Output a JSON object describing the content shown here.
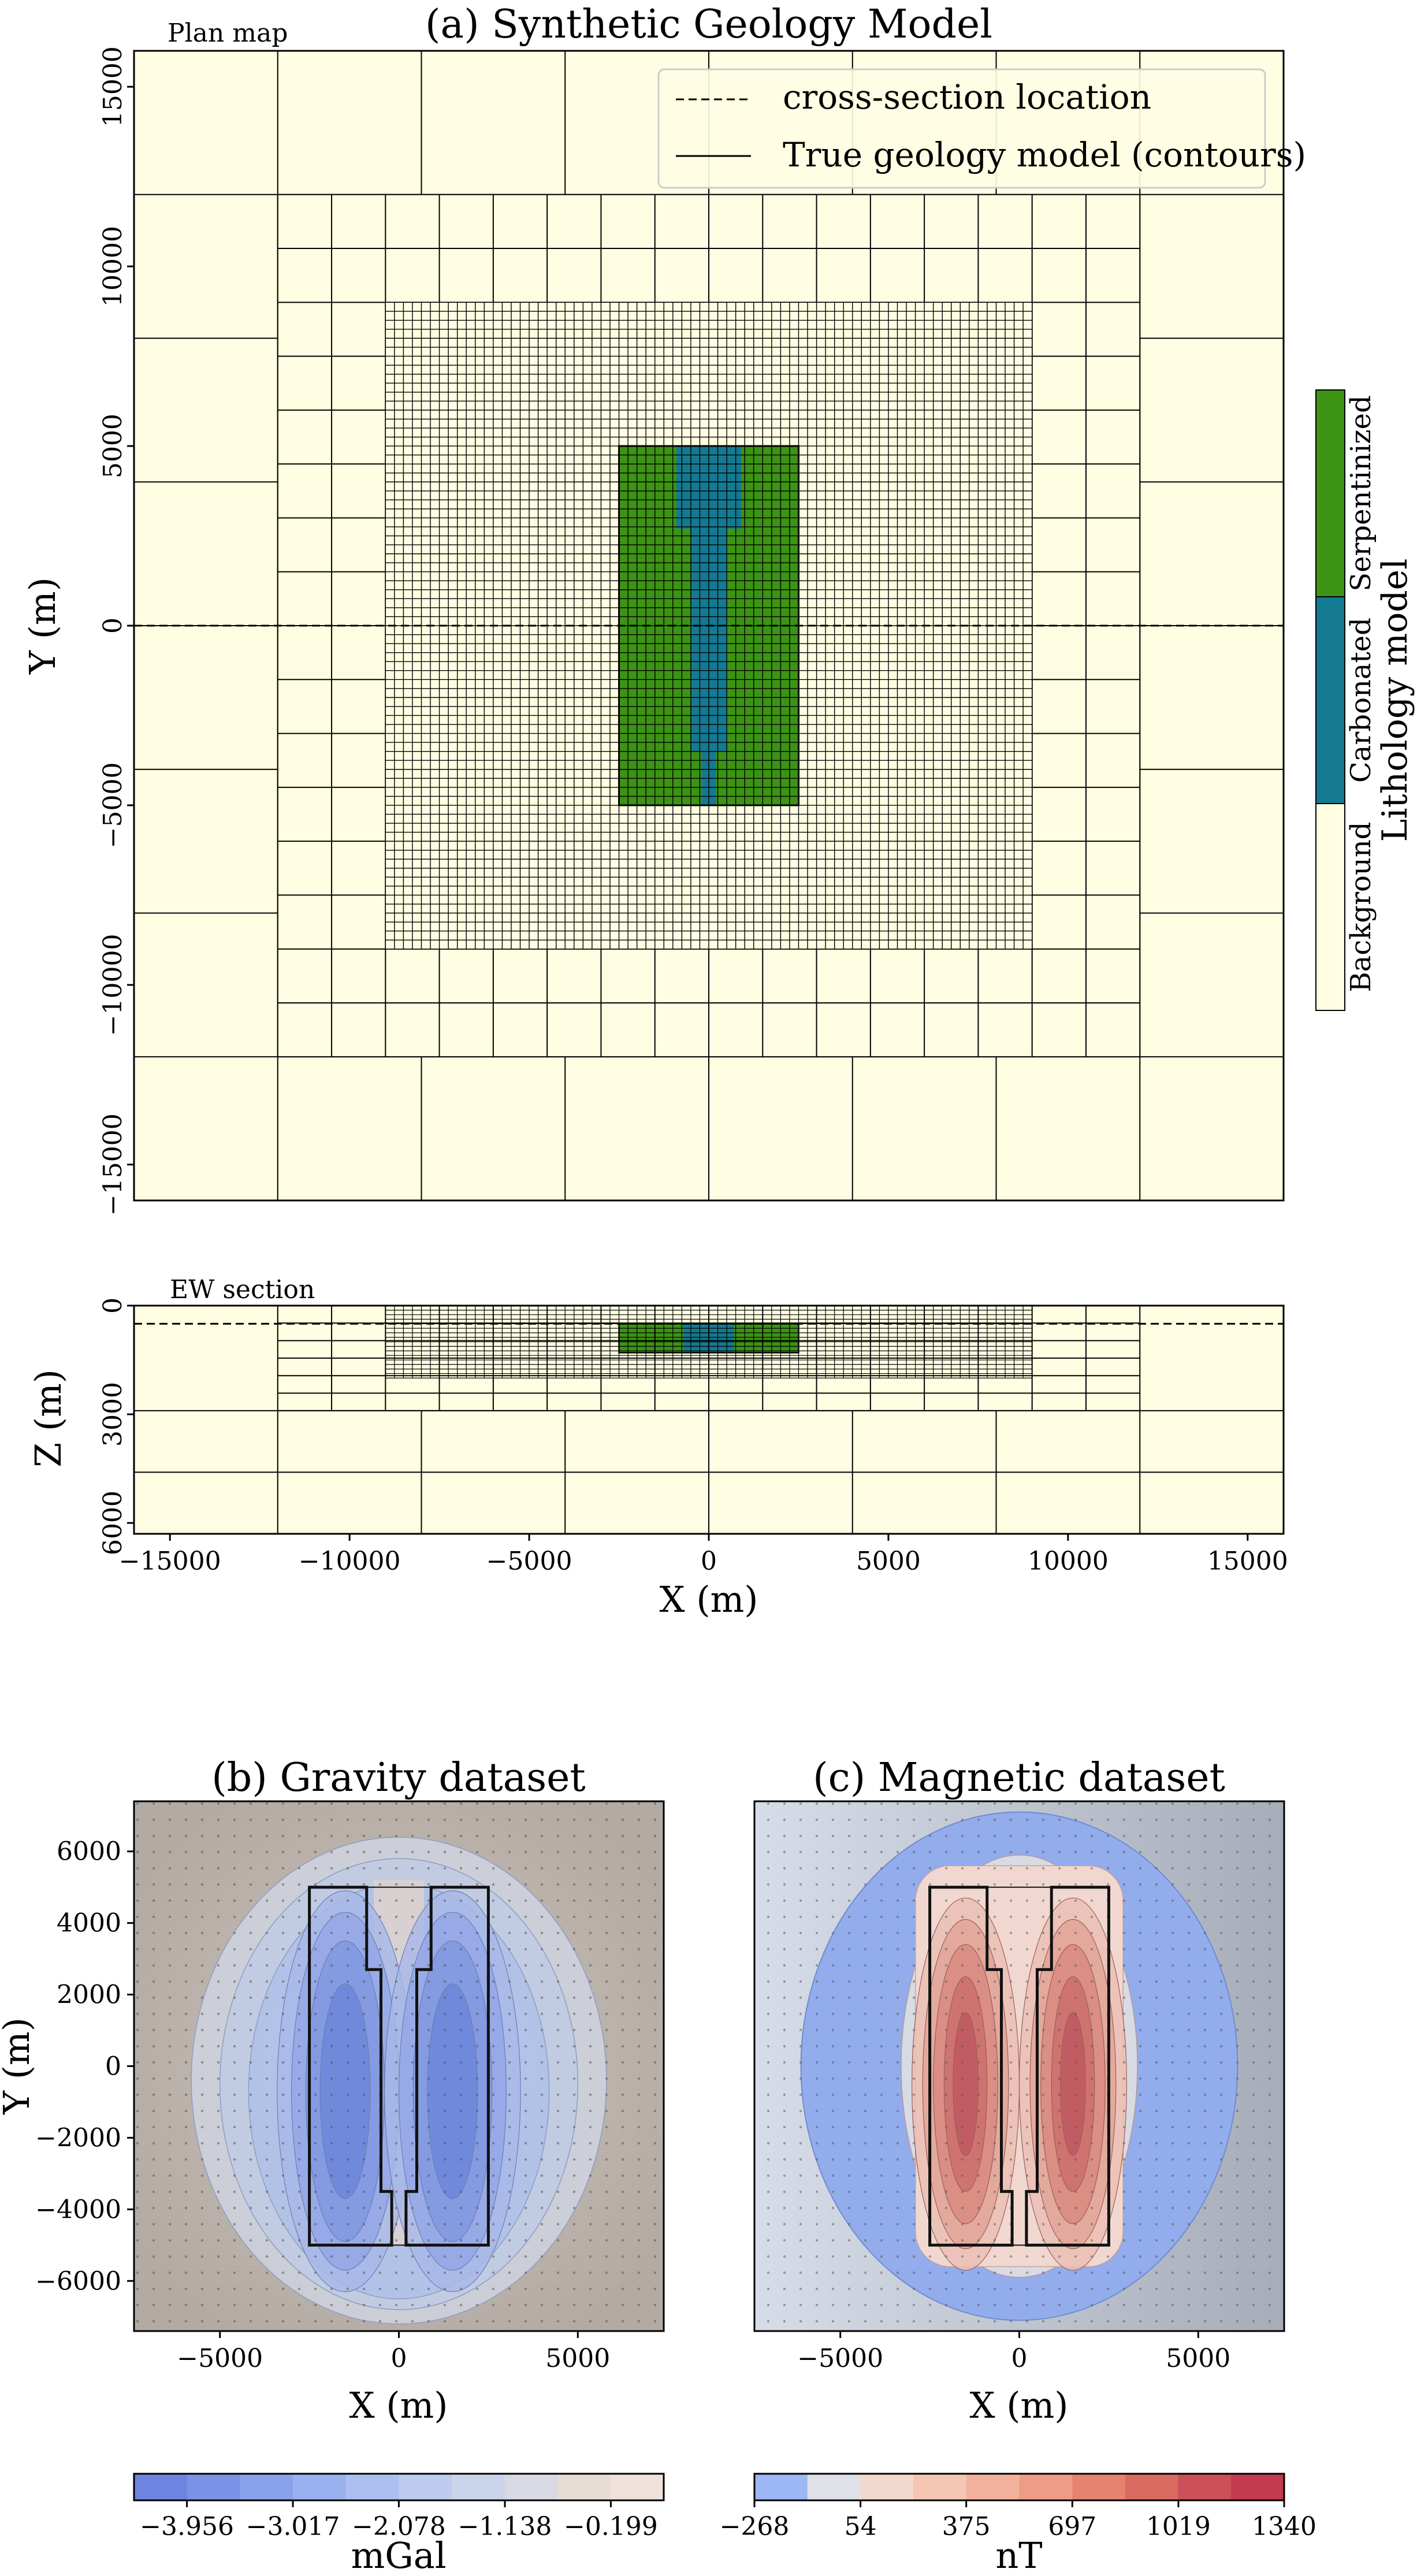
{
  "chart_data": [
    {
      "type": "heatmap",
      "panel": "plan",
      "title": "(a) Synthetic Geology Model",
      "annotation": "Plan map",
      "xlabel": "",
      "ylabel": "Y (m)",
      "xlim": [
        -16000,
        16000
      ],
      "ylim": [
        -16000,
        16000
      ],
      "yticks": [
        -15000,
        -10000,
        -5000,
        0,
        5000,
        10000,
        15000
      ],
      "ytick_labels": [
        "−15000",
        "−10000",
        "−5000",
        "0",
        "5000",
        "10000",
        "15000"
      ],
      "mesh_extents": [
        [
          -16000,
          16000,
          12000,
          16000
        ],
        [
          -12000,
          12000,
          -12000,
          12000
        ],
        [
          -9000,
          9000,
          -9000,
          9000
        ]
      ],
      "regions": [
        {
          "unit": "Serpentinized",
          "x": [
            -2500,
            2500
          ],
          "y": [
            -5000,
            5000
          ]
        },
        {
          "unit": "Carbonated",
          "polygon": [
            [
              -900,
              5000
            ],
            [
              900,
              5000
            ],
            [
              900,
              2700
            ],
            [
              500,
              2700
            ],
            [
              500,
              -3500
            ],
            [
              200,
              -3500
            ],
            [
              200,
              -5000
            ],
            [
              -200,
              -5000
            ],
            [
              -200,
              -3500
            ],
            [
              -500,
              -3500
            ],
            [
              -500,
              2700
            ],
            [
              -900,
              2700
            ]
          ]
        }
      ],
      "cross_section_y": 0,
      "legend": {
        "placement": "upper-right",
        "entries": [
          "cross-section location",
          "True geology model (contours)"
        ]
      },
      "colorbar": {
        "label": "Lithology model",
        "categories": [
          "Background",
          "Carbonated",
          "Serpentinized"
        ],
        "colors": [
          "#fffee3",
          "#137a92",
          "#3c9314"
        ]
      }
    },
    {
      "type": "heatmap",
      "panel": "section",
      "annotation": "EW section",
      "xlabel": "X (m)",
      "ylabel": "Z (m)",
      "xlim": [
        -16000,
        16000
      ],
      "ylim": [
        6300,
        0
      ],
      "xticks": [
        -15000,
        -10000,
        -5000,
        0,
        5000,
        10000,
        15000
      ],
      "xtick_labels": [
        "−15000",
        "−10000",
        "−5000",
        "0",
        "5000",
        "10000",
        "15000"
      ],
      "yticks": [
        0,
        3000,
        6000
      ],
      "ytick_labels": [
        "0",
        "3000",
        "6000"
      ],
      "section_depth": 500,
      "regions": [
        {
          "unit": "Serpentinized",
          "x": [
            -2500,
            2500
          ],
          "z": [
            500,
            1300
          ]
        },
        {
          "unit": "Carbonated",
          "x": [
            -700,
            700
          ],
          "z": [
            500,
            1300
          ]
        }
      ]
    },
    {
      "type": "heatmap",
      "panel": "gravity",
      "title": "(b) Gravity dataset",
      "xlabel": "X (m)",
      "ylabel": "Y (m)",
      "xlim": [
        -7400,
        7400
      ],
      "ylim": [
        -7400,
        7400
      ],
      "xticks": [
        -5000,
        0,
        5000
      ],
      "xtick_labels": [
        "−5000",
        "0",
        "5000"
      ],
      "yticks": [
        -6000,
        -4000,
        -2000,
        0,
        2000,
        4000,
        6000
      ],
      "ytick_labels": [
        "−6000",
        "−4000",
        "−2000",
        "0",
        "2000",
        "4000",
        "6000"
      ],
      "colorbar": {
        "label": "mGal",
        "ticks": [
          -3.956,
          -3.017,
          -2.078,
          -1.138,
          -0.199
        ],
        "tick_labels": [
          "−3.956",
          "−3.017",
          "−2.078",
          "−1.138",
          "−0.199"
        ],
        "range": [
          -4.425,
          0.27
        ]
      }
    },
    {
      "type": "heatmap",
      "panel": "magnetic",
      "title": "(c) Magnetic dataset",
      "xlabel": "X (m)",
      "ylabel": "",
      "xlim": [
        -7400,
        7400
      ],
      "ylim": [
        -7400,
        7400
      ],
      "xticks": [
        -5000,
        0,
        5000
      ],
      "xtick_labels": [
        "−5000",
        "0",
        "5000"
      ],
      "colorbar": {
        "label": "nT",
        "ticks": [
          -268,
          54,
          375,
          697,
          1019,
          1340
        ],
        "tick_labels": [
          "−268",
          "54",
          "375",
          "697",
          "1019",
          "1340"
        ],
        "range": [
          -268,
          1340
        ]
      }
    }
  ]
}
